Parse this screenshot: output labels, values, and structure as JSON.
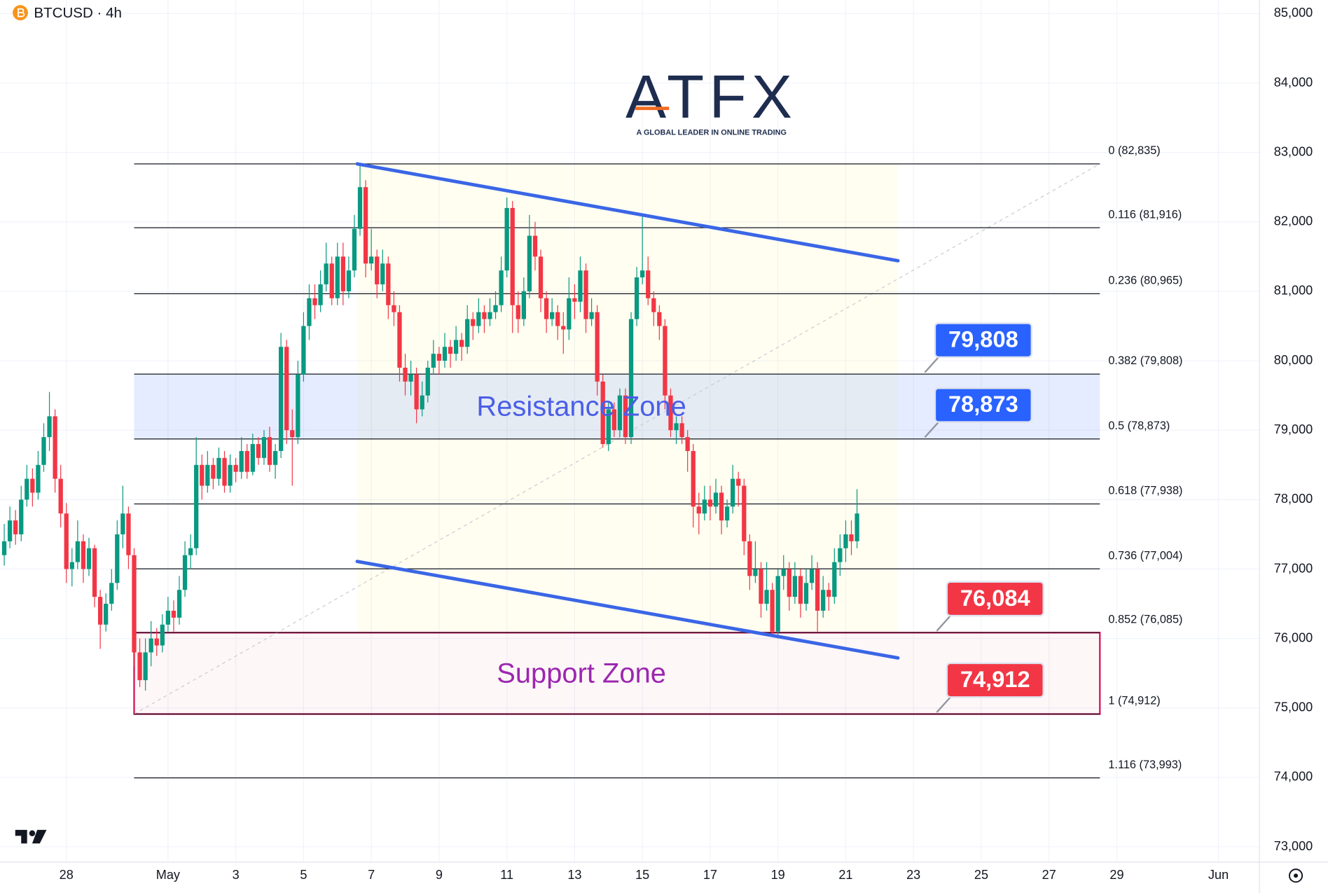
{
  "chart_data": {
    "type": "candlestick",
    "symbol": "BTCUSD · 4h",
    "logo": {
      "name": "ATFX",
      "tagline": "A GLOBAL LEADER IN ONLINE TRADING"
    },
    "up_color": "#089981",
    "down_color": "#f23645",
    "grid": true,
    "xlim": [
      -119,
      773
    ],
    "ylim": [
      72780,
      85195
    ],
    "xticks": [
      {
        "value": -72,
        "label": "28"
      },
      {
        "value": 0,
        "label": "May"
      },
      {
        "value": 48,
        "label": "3"
      },
      {
        "value": 96,
        "label": "5"
      },
      {
        "value": 144,
        "label": "7"
      },
      {
        "value": 192,
        "label": "9"
      },
      {
        "value": 240,
        "label": "11"
      },
      {
        "value": 288,
        "label": "13"
      },
      {
        "value": 336,
        "label": "15"
      },
      {
        "value": 384,
        "label": "17"
      },
      {
        "value": 432,
        "label": "19"
      },
      {
        "value": 480,
        "label": "21"
      },
      {
        "value": 528,
        "label": "23"
      },
      {
        "value": 576,
        "label": "25"
      },
      {
        "value": 624,
        "label": "27"
      },
      {
        "value": 672,
        "label": "29"
      },
      {
        "value": 744,
        "label": "Jun"
      }
    ],
    "yticks": [
      {
        "value": 73000,
        "label": "73,000"
      },
      {
        "value": 74000,
        "label": "74,000"
      },
      {
        "value": 75000,
        "label": "75,000"
      },
      {
        "value": 76000,
        "label": "76,000"
      },
      {
        "value": 77000,
        "label": "77,000"
      },
      {
        "value": 78000,
        "label": "78,000"
      },
      {
        "value": 79000,
        "label": "79,000"
      },
      {
        "value": 80000,
        "label": "80,000"
      },
      {
        "value": 81000,
        "label": "81,000"
      },
      {
        "value": 82000,
        "label": "82,000"
      },
      {
        "value": 83000,
        "label": "83,000"
      },
      {
        "value": 84000,
        "label": "84,000"
      },
      {
        "value": 85000,
        "label": "85,000"
      }
    ],
    "candles": [
      [
        -116,
        77200,
        77650,
        77050,
        77400
      ],
      [
        -112,
        77400,
        77900,
        77300,
        77700
      ],
      [
        -108,
        77700,
        77850,
        77350,
        77500
      ],
      [
        -104,
        77500,
        78200,
        77400,
        78000
      ],
      [
        -100,
        78000,
        78500,
        77900,
        78300
      ],
      [
        -96,
        78300,
        78450,
        77900,
        78100
      ],
      [
        -92,
        78100,
        78700,
        78000,
        78500
      ],
      [
        -88,
        78500,
        79100,
        78400,
        78900
      ],
      [
        -84,
        78900,
        79550,
        78700,
        79200
      ],
      [
        -80,
        79200,
        79300,
        78100,
        78300
      ],
      [
        -76,
        78300,
        78500,
        77600,
        77800
      ],
      [
        -72,
        77800,
        77950,
        76800,
        77000
      ],
      [
        -68,
        77000,
        77300,
        76750,
        77100
      ],
      [
        -64,
        77100,
        77700,
        77000,
        77400
      ],
      [
        -60,
        77400,
        77500,
        76800,
        77000
      ],
      [
        -56,
        77000,
        77450,
        76900,
        77300
      ],
      [
        -52,
        77300,
        77350,
        76450,
        76600
      ],
      [
        -48,
        76600,
        76700,
        75850,
        76200
      ],
      [
        -44,
        76200,
        76650,
        76100,
        76500
      ],
      [
        -40,
        76500,
        77000,
        76400,
        76800
      ],
      [
        -36,
        76800,
        77700,
        76700,
        77500
      ],
      [
        -32,
        77500,
        78200,
        77300,
        77800
      ],
      [
        -28,
        77800,
        77900,
        77000,
        77200
      ],
      [
        -24,
        77200,
        77300,
        75600,
        75800
      ],
      [
        -20,
        75800,
        76000,
        75300,
        75400
      ],
      [
        -16,
        75400,
        76000,
        75250,
        75800
      ],
      [
        -12,
        75800,
        76250,
        75600,
        76000
      ],
      [
        -8,
        76000,
        76150,
        75750,
        75900
      ],
      [
        -4,
        75900,
        76350,
        75800,
        76200
      ],
      [
        0,
        76200,
        76600,
        76100,
        76400
      ],
      [
        4,
        76400,
        76550,
        76100,
        76300
      ],
      [
        8,
        76300,
        76900,
        76200,
        76700
      ],
      [
        12,
        76700,
        77400,
        76600,
        77200
      ],
      [
        16,
        77200,
        77500,
        77000,
        77300
      ],
      [
        20,
        77300,
        78900,
        77200,
        78500
      ],
      [
        24,
        78500,
        78650,
        78000,
        78200
      ],
      [
        28,
        78200,
        78700,
        78100,
        78500
      ],
      [
        32,
        78500,
        78600,
        78150,
        78300
      ],
      [
        36,
        78300,
        78750,
        78200,
        78600
      ],
      [
        40,
        78600,
        78700,
        78100,
        78200
      ],
      [
        44,
        78200,
        78650,
        78100,
        78500
      ],
      [
        48,
        78500,
        78600,
        78250,
        78400
      ],
      [
        52,
        78400,
        78900,
        78300,
        78700
      ],
      [
        56,
        78700,
        78800,
        78300,
        78400
      ],
      [
        60,
        78400,
        78950,
        78350,
        78800
      ],
      [
        64,
        78800,
        78900,
        78500,
        78600
      ],
      [
        68,
        78600,
        79000,
        78500,
        78900
      ],
      [
        72,
        78900,
        79050,
        78400,
        78500
      ],
      [
        76,
        78500,
        78800,
        78300,
        78700
      ],
      [
        80,
        78700,
        80400,
        78600,
        80200
      ],
      [
        84,
        80200,
        80300,
        78800,
        79000
      ],
      [
        88,
        79000,
        79300,
        78200,
        78900
      ],
      [
        92,
        78900,
        80000,
        78800,
        79800
      ],
      [
        96,
        79800,
        80700,
        79700,
        80500
      ],
      [
        100,
        80500,
        81100,
        80300,
        80900
      ],
      [
        104,
        80900,
        81100,
        80600,
        80800
      ],
      [
        108,
        80800,
        81300,
        80700,
        81100
      ],
      [
        112,
        81100,
        81700,
        81000,
        81400
      ],
      [
        116,
        81400,
        81500,
        80800,
        80900
      ],
      [
        120,
        80900,
        81700,
        80800,
        81500
      ],
      [
        124,
        81500,
        81700,
        80800,
        81000
      ],
      [
        128,
        81000,
        81500,
        80900,
        81300
      ],
      [
        132,
        81300,
        82100,
        81200,
        81900
      ],
      [
        136,
        81900,
        82835,
        81800,
        82500
      ],
      [
        140,
        82500,
        82600,
        81200,
        81400
      ],
      [
        144,
        81400,
        81900,
        81300,
        81500
      ],
      [
        148,
        81500,
        81600,
        80900,
        81100
      ],
      [
        152,
        81100,
        81600,
        81000,
        81400
      ],
      [
        156,
        81400,
        81500,
        80600,
        80800
      ],
      [
        160,
        80800,
        81000,
        80500,
        80700
      ],
      [
        164,
        80700,
        80800,
        79700,
        79900
      ],
      [
        168,
        79900,
        80100,
        79500,
        79700
      ],
      [
        172,
        79700,
        80000,
        79500,
        79800
      ],
      [
        176,
        79800,
        79900,
        79100,
        79300
      ],
      [
        180,
        79300,
        79700,
        79200,
        79500
      ],
      [
        184,
        79500,
        80000,
        79400,
        79900
      ],
      [
        188,
        79900,
        80300,
        79800,
        80100
      ],
      [
        192,
        80100,
        80200,
        79800,
        80000
      ],
      [
        196,
        80000,
        80400,
        79900,
        80200
      ],
      [
        200,
        80200,
        80300,
        79900,
        80100
      ],
      [
        204,
        80100,
        80500,
        80000,
        80300
      ],
      [
        208,
        80300,
        80400,
        80000,
        80200
      ],
      [
        212,
        80200,
        80800,
        80100,
        80600
      ],
      [
        216,
        80600,
        80700,
        80300,
        80500
      ],
      [
        220,
        80500,
        80900,
        80400,
        80700
      ],
      [
        224,
        80700,
        80800,
        80400,
        80600
      ],
      [
        228,
        80600,
        80900,
        80500,
        80700
      ],
      [
        232,
        80700,
        81000,
        80600,
        80800
      ],
      [
        236,
        80800,
        81500,
        80700,
        81300
      ],
      [
        240,
        81300,
        82350,
        81200,
        82200
      ],
      [
        244,
        82200,
        82300,
        80400,
        80800
      ],
      [
        248,
        80800,
        81000,
        80400,
        80600
      ],
      [
        252,
        80600,
        81200,
        80500,
        81000
      ],
      [
        256,
        81000,
        82100,
        80900,
        81800
      ],
      [
        260,
        81800,
        82000,
        81300,
        81500
      ],
      [
        264,
        81500,
        81600,
        80700,
        80900
      ],
      [
        268,
        80900,
        81000,
        80400,
        80600
      ],
      [
        272,
        80600,
        80900,
        80500,
        80700
      ],
      [
        276,
        80700,
        80800,
        80300,
        80500
      ],
      [
        280,
        80500,
        80700,
        80100,
        80450
      ],
      [
        284,
        80450,
        81200,
        80300,
        80900
      ],
      [
        288,
        80900,
        81100,
        80600,
        80850
      ],
      [
        292,
        80850,
        81500,
        80700,
        81300
      ],
      [
        296,
        81300,
        81400,
        80400,
        80600
      ],
      [
        300,
        80600,
        80900,
        80500,
        80700
      ],
      [
        304,
        80700,
        80800,
        79500,
        79700
      ],
      [
        308,
        79700,
        79800,
        78750,
        78800
      ],
      [
        312,
        78800,
        79400,
        78700,
        79300
      ],
      [
        316,
        79300,
        79400,
        78900,
        79000
      ],
      [
        320,
        79000,
        79600,
        78900,
        79500
      ],
      [
        324,
        79500,
        79600,
        78800,
        78900
      ],
      [
        328,
        78900,
        80700,
        78800,
        80600
      ],
      [
        332,
        80600,
        81350,
        80500,
        81200
      ],
      [
        336,
        81200,
        82100,
        81100,
        81300
      ],
      [
        340,
        81300,
        81500,
        80800,
        80900
      ],
      [
        344,
        80900,
        81000,
        80500,
        80700
      ],
      [
        348,
        80700,
        80800,
        80300,
        80500
      ],
      [
        352,
        80500,
        80600,
        79300,
        79500
      ],
      [
        356,
        79500,
        79600,
        78900,
        79000
      ],
      [
        360,
        79000,
        79200,
        78800,
        79100
      ],
      [
        364,
        79100,
        79200,
        78800,
        78900
      ],
      [
        368,
        78900,
        79000,
        78400,
        78700
      ],
      [
        372,
        78700,
        78800,
        77600,
        77900
      ],
      [
        376,
        77900,
        78100,
        77500,
        77800
      ],
      [
        380,
        77800,
        78200,
        77700,
        78000
      ],
      [
        384,
        78000,
        78200,
        77700,
        77900
      ],
      [
        388,
        77900,
        78300,
        77800,
        78100
      ],
      [
        392,
        78100,
        78200,
        77500,
        77700
      ],
      [
        396,
        77700,
        78000,
        77600,
        77900
      ],
      [
        400,
        77900,
        78500,
        77800,
        78300
      ],
      [
        404,
        78300,
        78400,
        77900,
        78200
      ],
      [
        408,
        78200,
        78300,
        77200,
        77400
      ],
      [
        412,
        77400,
        77500,
        76700,
        76900
      ],
      [
        416,
        76900,
        77400,
        76800,
        77000
      ],
      [
        420,
        77000,
        77100,
        76300,
        76500
      ],
      [
        424,
        76500,
        77100,
        76400,
        76700
      ],
      [
        428,
        76700,
        76800,
        76050,
        76100
      ],
      [
        432,
        76100,
        77000,
        76000,
        76900
      ],
      [
        436,
        76900,
        77200,
        76700,
        77000
      ],
      [
        440,
        77000,
        77100,
        76400,
        76600
      ],
      [
        444,
        76600,
        77100,
        76500,
        76900
      ],
      [
        448,
        76900,
        77000,
        76300,
        76500
      ],
      [
        452,
        76500,
        77000,
        76400,
        76800
      ],
      [
        456,
        76800,
        77200,
        76700,
        77000
      ],
      [
        460,
        77000,
        77100,
        76100,
        76400
      ],
      [
        464,
        76400,
        76900,
        76300,
        76700
      ],
      [
        468,
        76700,
        76800,
        76400,
        76600
      ],
      [
        472,
        76600,
        77300,
        76500,
        77100
      ],
      [
        476,
        77100,
        77500,
        76900,
        77300
      ],
      [
        480,
        77300,
        77700,
        77100,
        77500
      ],
      [
        484,
        77500,
        77700,
        77200,
        77400
      ],
      [
        488,
        77400,
        78150,
        77300,
        77800
      ]
    ],
    "fib": {
      "x": [
        -24,
        660
      ],
      "levels": [
        {
          "value": 82835,
          "label": "0 (82,835)"
        },
        {
          "value": 81916,
          "label": "0.116 (81,916)"
        },
        {
          "value": 80965,
          "label": "0.236 (80,965)"
        },
        {
          "value": 79808,
          "label": "0.382 (79,808)"
        },
        {
          "value": 78873,
          "label": "0.5 (78,873)"
        },
        {
          "value": 77938,
          "label": "0.618 (77,938)"
        },
        {
          "value": 77004,
          "label": "0.736 (77,004)"
        },
        {
          "value": 76085,
          "label": "0.852 (76,085)"
        },
        {
          "value": 74912,
          "label": "1 (74,912)"
        },
        {
          "value": 73993,
          "label": "1.116 (73,993)"
        }
      ]
    },
    "zones": [
      {
        "name": "Resistance Zone",
        "top": 79808,
        "bottom": 78873,
        "top_label": "79,808",
        "bottom_label": "78,873",
        "color": "#2962ff",
        "text_color": "#4a5ee8",
        "border": false
      },
      {
        "name": "Support Zone",
        "top": 76084,
        "bottom": 74912,
        "top_label": "76,084",
        "bottom_label": "74,912",
        "color": "#f23645",
        "text_color": "#9c27b0",
        "border": true
      }
    ],
    "trendlines": [
      {
        "color": "#3a66e6",
        "points": [
          [
            134,
            82835
          ],
          [
            517,
            81440
          ]
        ]
      },
      {
        "color": "#3a66e6",
        "points": [
          [
            134,
            77110
          ],
          [
            517,
            75720
          ]
        ]
      }
    ]
  }
}
